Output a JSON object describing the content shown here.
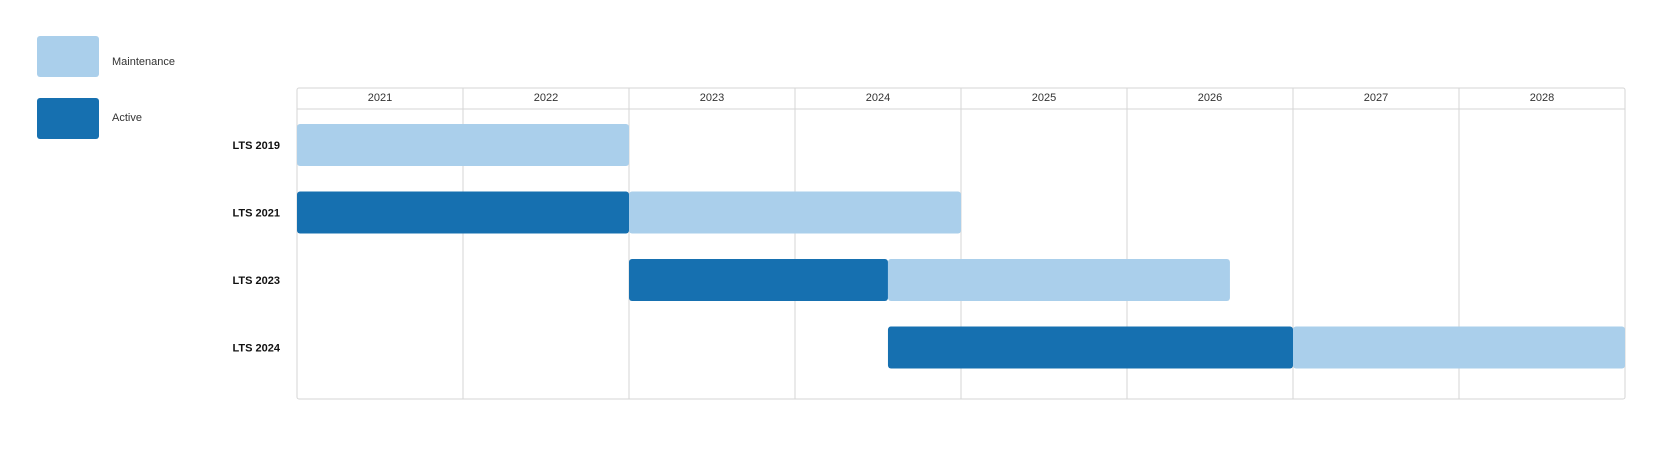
{
  "chart_data": {
    "type": "gantt",
    "legend": [
      {
        "key": "maintenance",
        "label": "Maintenance",
        "color": "#aacfeb"
      },
      {
        "key": "active",
        "label": "Active",
        "color": "#1670b0"
      }
    ],
    "legend_position": "top-left",
    "years": [
      "2021",
      "2022",
      "2023",
      "2024",
      "2025",
      "2026",
      "2027",
      "2028"
    ],
    "x_range": [
      2021,
      2029
    ],
    "grid": true,
    "rows": [
      {
        "label": "LTS 2019",
        "segments": [
          {
            "phase": "maintenance",
            "start": 2021.0,
            "end": 2023.0
          }
        ]
      },
      {
        "label": "LTS 2021",
        "segments": [
          {
            "phase": "active",
            "start": 2021.0,
            "end": 2023.0
          },
          {
            "phase": "maintenance",
            "start": 2023.0,
            "end": 2025.0
          }
        ]
      },
      {
        "label": "LTS 2023",
        "segments": [
          {
            "phase": "active",
            "start": 2023.0,
            "end": 2024.56
          },
          {
            "phase": "maintenance",
            "start": 2024.56,
            "end": 2026.62
          }
        ]
      },
      {
        "label": "LTS 2024",
        "segments": [
          {
            "phase": "active",
            "start": 2024.56,
            "end": 2027.0
          },
          {
            "phase": "maintenance",
            "start": 2027.0,
            "end": 2029.0
          }
        ]
      }
    ]
  }
}
